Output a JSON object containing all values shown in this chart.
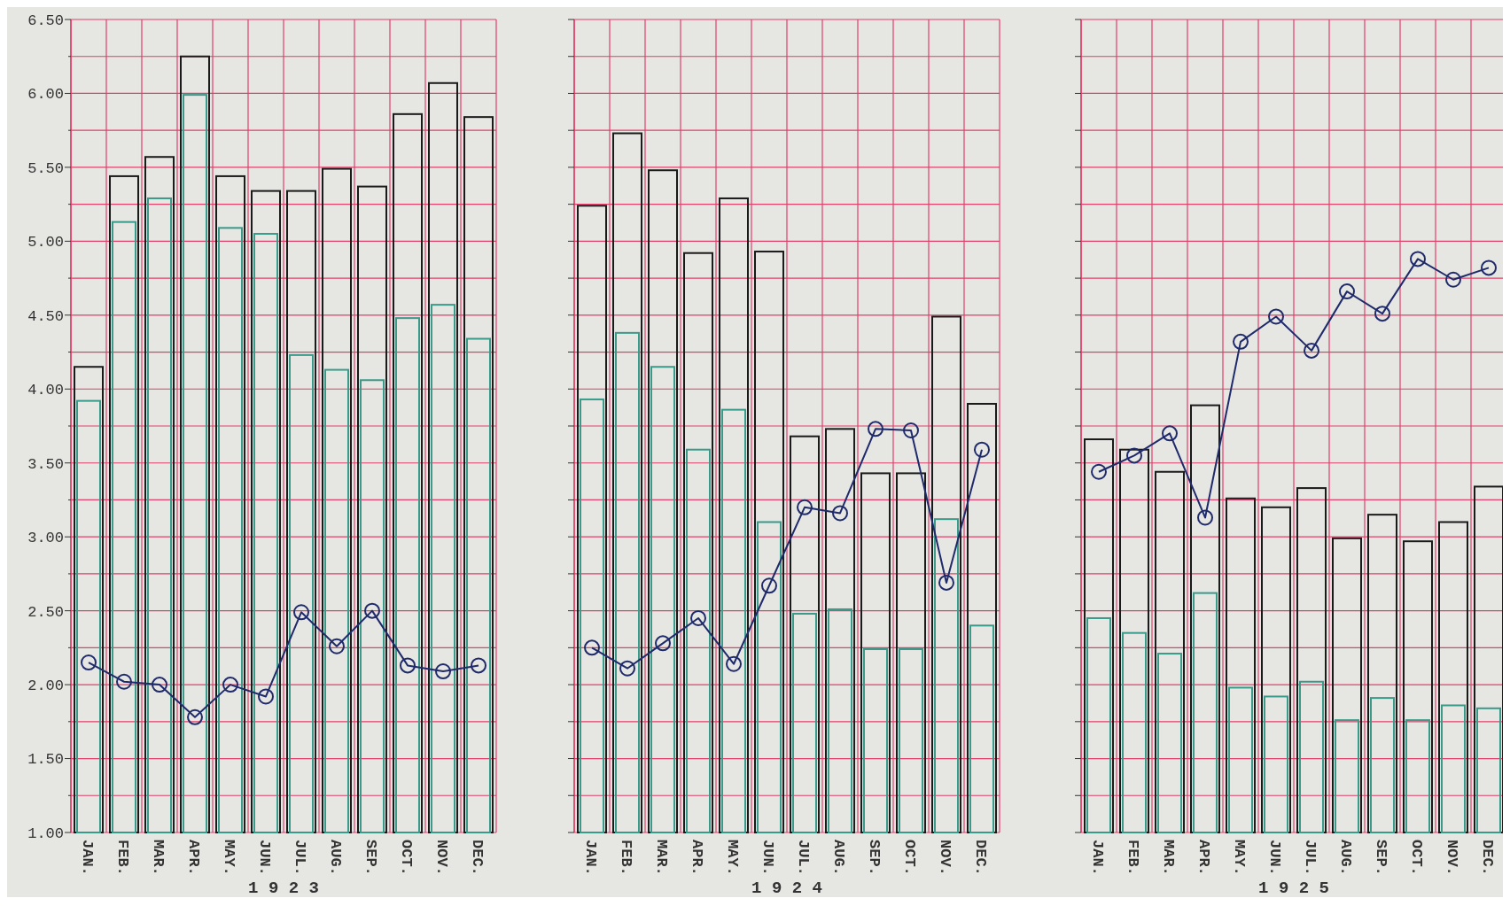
{
  "chart_data": [
    {
      "type": "bar",
      "xlabel": "1 9 2 3",
      "categories": [
        "JAN.",
        "FEB.",
        "MAR.",
        "APR.",
        "MAY.",
        "JUN.",
        "JUL.",
        "AUG.",
        "SEP.",
        "OCT.",
        "NOV.",
        "DEC."
      ],
      "ylim": [
        1,
        6.5
      ],
      "yticks": [
        {
          "value": 1,
          "label": "1.00"
        },
        {
          "value": 1.25,
          "label": null
        },
        {
          "value": 1.5,
          "label": "1.50"
        },
        {
          "value": 1.75,
          "label": null
        },
        {
          "value": 2,
          "label": "2.00"
        },
        {
          "value": 2.25,
          "label": null
        },
        {
          "value": 2.5,
          "label": "2.50"
        },
        {
          "value": 2.75,
          "label": null
        },
        {
          "value": 3,
          "label": "3.00"
        },
        {
          "value": 3.25,
          "label": null
        },
        {
          "value": 3.5,
          "label": "3.50"
        },
        {
          "value": 3.75,
          "label": null
        },
        {
          "value": 4,
          "label": "4.00"
        },
        {
          "value": 4.25,
          "label": null
        },
        {
          "value": 4.5,
          "label": "4.50"
        },
        {
          "value": 4.75,
          "label": null
        },
        {
          "value": 5,
          "label": "5.00"
        },
        {
          "value": 5.25,
          "label": null
        },
        {
          "value": 5.5,
          "label": "5.50"
        },
        {
          "value": 5.75,
          "label": null
        },
        {
          "value": 6,
          "label": "6.00"
        },
        {
          "value": 6.25,
          "label": null
        },
        {
          "value": 6.5,
          "label": "6.50"
        }
      ],
      "grid": true,
      "marker": "circle",
      "series": [
        {
          "color": "#1a1a1a",
          "values": [
            4.15,
            5.44,
            5.57,
            6.25,
            5.44,
            5.34,
            5.34,
            5.49,
            5.37,
            5.86,
            6.07,
            5.84
          ]
        },
        {
          "color": "#3a9a8a",
          "values": [
            3.92,
            5.13,
            5.29,
            5.99,
            5.09,
            5.05,
            4.23,
            4.13,
            4.06,
            4.48,
            4.57,
            4.34
          ]
        },
        {
          "type": "line",
          "color": "#1f2a6b",
          "values": [
            2.15,
            2.02,
            2.0,
            1.78,
            2.0,
            1.92,
            2.49,
            2.26,
            2.5,
            2.13,
            2.09,
            2.13
          ]
        }
      ]
    },
    {
      "type": "bar",
      "xlabel": "1 9 2 4",
      "tick_labels": "x",
      "categories": [
        "JAN.",
        "FEB.",
        "MAR.",
        "APR.",
        "MAY.",
        "JUN.",
        "JUL.",
        "AUG.",
        "SEP.",
        "OCT.",
        "NOV.",
        "DEC."
      ],
      "ylim": [
        1,
        6.5
      ],
      "yticks": [
        1,
        1.25,
        1.5,
        1.75,
        2,
        2.25,
        2.5,
        2.75,
        3,
        3.25,
        3.5,
        3.75,
        4,
        4.25,
        4.5,
        4.75,
        5,
        5.25,
        5.5,
        5.75,
        6,
        6.25,
        6.5
      ],
      "grid": true,
      "marker": "circle",
      "series": [
        {
          "color": "#1a1a1a",
          "values": [
            5.24,
            5.73,
            5.48,
            4.92,
            5.29,
            4.93,
            3.68,
            3.73,
            3.43,
            3.43,
            4.49,
            3.9
          ]
        },
        {
          "color": "#3a9a8a",
          "values": [
            3.93,
            4.38,
            4.15,
            3.59,
            3.86,
            3.1,
            2.48,
            2.51,
            2.24,
            2.24,
            3.12,
            2.4
          ]
        },
        {
          "type": "line",
          "color": "#1f2a6b",
          "values": [
            2.25,
            2.11,
            2.28,
            2.45,
            2.14,
            2.67,
            3.2,
            3.16,
            3.73,
            3.72,
            2.69,
            3.59
          ]
        }
      ]
    },
    {
      "type": "bar",
      "xlabel": "1 9 2 5",
      "tick_labels": "x",
      "categories": [
        "JAN.",
        "FEB.",
        "MAR.",
        "APR.",
        "MAY.",
        "JUN.",
        "JUL.",
        "AUG.",
        "SEP.",
        "OCT.",
        "NOV.",
        "DEC."
      ],
      "ylim": [
        1,
        6.5
      ],
      "yticks": [
        1,
        1.25,
        1.5,
        1.75,
        2,
        2.25,
        2.5,
        2.75,
        3,
        3.25,
        3.5,
        3.75,
        4,
        4.25,
        4.5,
        4.75,
        5,
        5.25,
        5.5,
        5.75,
        6,
        6.25,
        6.5
      ],
      "grid": true,
      "marker": "circle",
      "series": [
        {
          "color": "#1a1a1a",
          "values": [
            3.66,
            3.59,
            3.44,
            3.89,
            3.26,
            3.2,
            3.33,
            2.99,
            3.15,
            2.97,
            3.1,
            3.34
          ]
        },
        {
          "color": "#3a9a8a",
          "values": [
            2.45,
            2.35,
            2.21,
            2.62,
            1.98,
            1.92,
            2.02,
            1.76,
            1.91,
            1.76,
            1.86,
            1.84
          ]
        },
        {
          "type": "line",
          "color": "#1f2a6b",
          "values": [
            3.44,
            3.55,
            3.7,
            3.13,
            4.32,
            4.49,
            4.26,
            4.66,
            4.51,
            4.88,
            4.74,
            4.82
          ]
        }
      ]
    }
  ]
}
